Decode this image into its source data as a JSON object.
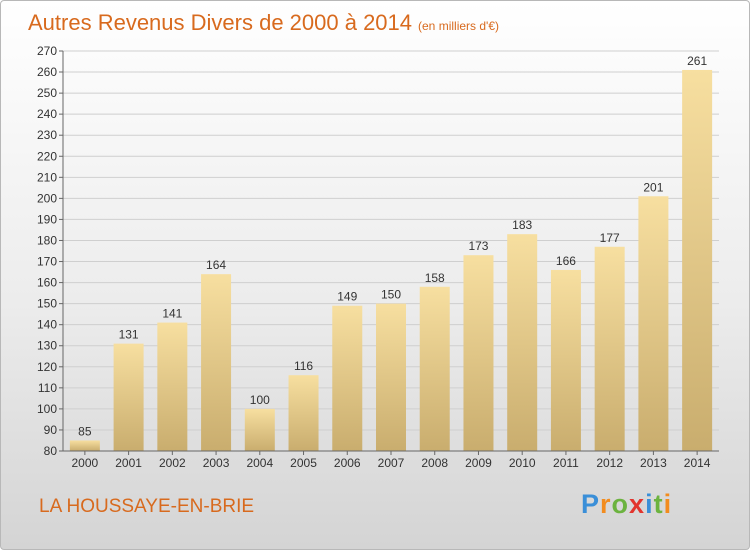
{
  "title": "Autres Revenus Divers de 2000 à 2014",
  "subtitle": "(en milliers d'€)",
  "place": "LA HOUSSAYE-EN-BRIE",
  "brand": {
    "letters": [
      "P",
      "r",
      "o",
      "x",
      "i",
      "t",
      "i"
    ],
    "colors": [
      "#3a8fd8",
      "#f28c1e",
      "#6cb33f",
      "#e2342d",
      "#3a8fd8",
      "#6cb33f",
      "#f28c1e"
    ]
  },
  "colors": {
    "bar_light": "#f7dfa0",
    "bar_dark": "#c9ad6e",
    "text": "#333333",
    "grid": "#cfcfcf"
  },
  "chart_data": {
    "type": "bar",
    "categories": [
      "2000",
      "2001",
      "2002",
      "2003",
      "2004",
      "2005",
      "2006",
      "2007",
      "2008",
      "2009",
      "2010",
      "2011",
      "2012",
      "2013",
      "2014"
    ],
    "values": [
      85,
      131,
      141,
      164,
      100,
      116,
      149,
      150,
      158,
      173,
      183,
      166,
      177,
      201,
      261
    ],
    "ylim": [
      80,
      270
    ],
    "ytick_step": 10,
    "grid": true,
    "xlabel": "",
    "ylabel": ""
  }
}
